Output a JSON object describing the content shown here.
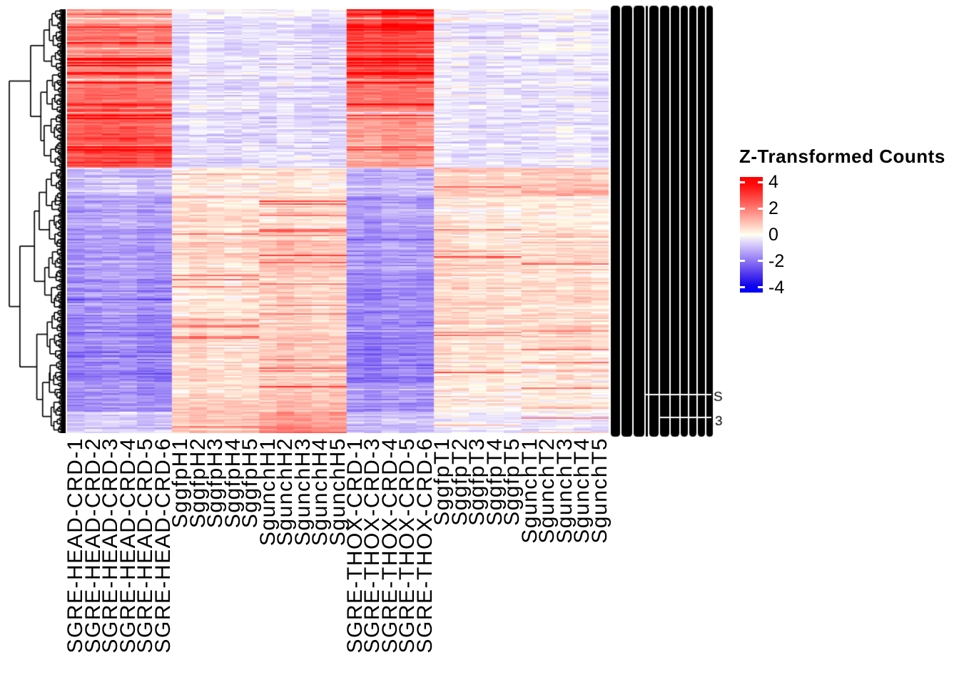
{
  "figure": {
    "kind": "clustered-heatmap-with-row-dendrogram"
  },
  "legend": {
    "title": "Z-Transformed Counts",
    "ticks": [
      "4",
      "2",
      "0",
      "-2",
      "-4"
    ]
  },
  "chart_data": {
    "type": "heatmap",
    "legend_title": "Z-Transformed Counts",
    "legend_ticks": [
      4,
      2,
      0,
      -2,
      -4
    ],
    "zlim": [
      -4.4,
      4.4
    ],
    "palette": {
      "high": "#FF0000",
      "mid": "#FFFFFF",
      "low": "#0000FF"
    },
    "row_dendrogram": true,
    "column_dendrogram": false,
    "row_labels_overplotted": true,
    "column_groups": [
      {
        "name": "SGRE-HEAD-CRD",
        "columns": [
          "SGRE-HEAD-CRD-1",
          "SGRE-HEAD-CRD-2",
          "SGRE-HEAD-CRD-3",
          "SGRE-HEAD-CRD-4",
          "SGRE-HEAD-CRD-5",
          "SGRE-HEAD-CRD-6"
        ]
      },
      {
        "name": "SggfpH",
        "columns": [
          "SggfpH1",
          "SggfpH2",
          "SggfpH3",
          "SggfpH4",
          "SggfpH5"
        ]
      },
      {
        "name": "SgunchH",
        "columns": [
          "SgunchH1",
          "SgunchH2",
          "SgunchH3",
          "SgunchH4",
          "SgunchH5"
        ]
      },
      {
        "name": "SGRE-THOX-CRD",
        "columns": [
          "SGRE-THOX-CRD-1",
          "SGRE-THOX-CRD-3",
          "SGRE-THOX-CRD-4",
          "SGRE-THOX-CRD-5",
          "SGRE-THOX-CRD-6"
        ]
      },
      {
        "name": "SggfpT",
        "columns": [
          "SggfpT1",
          "SggfpT2",
          "SggfpT3",
          "SggfpT4",
          "SggfpT5"
        ]
      },
      {
        "name": "SgunchT",
        "columns": [
          "SgunchT1",
          "SgunchT2",
          "SgunchT3",
          "SgunchT4",
          "SgunchT5"
        ]
      }
    ],
    "row_blocks": [
      {
        "from": 0.0,
        "to": 0.035,
        "values": [
          1.2,
          -0.3,
          -0.4,
          2.2,
          -0.2,
          -0.2
        ]
      },
      {
        "from": 0.035,
        "to": 0.1,
        "values": [
          1.9,
          -0.4,
          -0.5,
          2.9,
          -0.3,
          -0.3
        ]
      },
      {
        "from": 0.1,
        "to": 0.17,
        "values": [
          2.0,
          -0.4,
          -0.5,
          2.6,
          -0.3,
          -0.4
        ]
      },
      {
        "from": 0.17,
        "to": 0.235,
        "values": [
          2.2,
          -0.5,
          -0.5,
          2.1,
          -0.3,
          -0.4
        ]
      },
      {
        "from": 0.235,
        "to": 0.3,
        "values": [
          2.6,
          -0.5,
          -0.6,
          1.5,
          -0.4,
          -0.4
        ]
      },
      {
        "from": 0.3,
        "to": 0.375,
        "values": [
          2.8,
          -0.5,
          -0.5,
          1.3,
          -0.4,
          -0.4
        ]
      },
      {
        "from": 0.375,
        "to": 0.44,
        "values": [
          -0.9,
          0.2,
          0.3,
          -1.1,
          0.7,
          0.8
        ]
      },
      {
        "from": 0.44,
        "to": 0.52,
        "values": [
          -1.2,
          0.5,
          0.6,
          -1.4,
          0.3,
          0.3
        ]
      },
      {
        "from": 0.52,
        "to": 0.62,
        "values": [
          -1.4,
          0.55,
          0.9,
          -1.5,
          0.45,
          0.45
        ]
      },
      {
        "from": 0.62,
        "to": 0.72,
        "values": [
          -1.6,
          0.45,
          0.75,
          -1.7,
          0.55,
          0.5
        ]
      },
      {
        "from": 0.72,
        "to": 0.8,
        "values": [
          -1.75,
          0.5,
          0.7,
          -1.8,
          0.45,
          0.55
        ]
      },
      {
        "from": 0.8,
        "to": 0.88,
        "values": [
          -1.9,
          0.5,
          0.8,
          -1.9,
          0.35,
          0.35
        ]
      },
      {
        "from": 0.88,
        "to": 0.95,
        "values": [
          -1.6,
          0.6,
          0.9,
          -1.6,
          0.25,
          0.25
        ]
      },
      {
        "from": 0.95,
        "to": 1.0,
        "values": [
          -0.7,
          0.9,
          1.4,
          -1.0,
          -0.35,
          -0.35
        ]
      }
    ],
    "up_cluster_fraction": 0.375,
    "noise": {
      "row": 0.5,
      "cell": 0.38
    }
  }
}
